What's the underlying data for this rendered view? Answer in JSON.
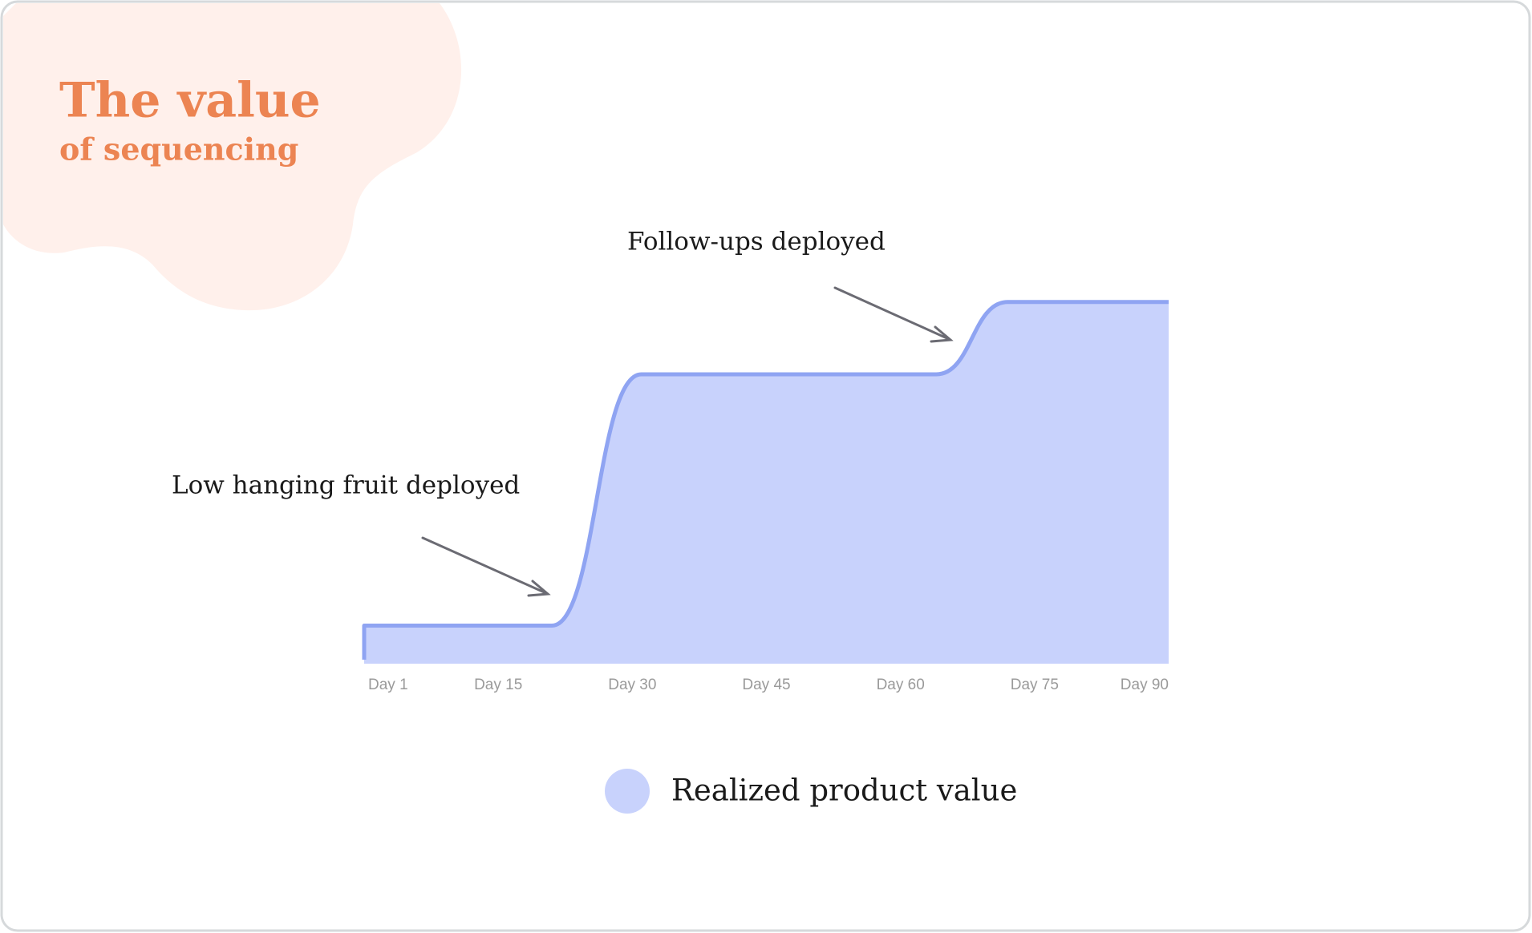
{
  "chart_data": {
    "type": "area",
    "title": "The value",
    "subtitle": "of sequencing",
    "annotations": [
      "Follow-ups deployed",
      "Low hanging fruit deployed"
    ],
    "x": [
      0,
      21,
      31,
      64,
      72,
      90
    ],
    "series": [
      {
        "name": "Realized product value",
        "color": "#c8d2fc",
        "line_color": "#8fa4f2",
        "values": [
          10,
          10,
          76,
          76,
          95,
          95
        ]
      }
    ],
    "xlim": [
      0,
      90
    ],
    "ylim": [
      0,
      100
    ],
    "xticks": [
      {
        "value": 1,
        "label": "Day 1"
      },
      {
        "value": 15,
        "label": "Day 15"
      },
      {
        "value": 30,
        "label": "Day 30"
      },
      {
        "value": 45,
        "label": "Day 45"
      },
      {
        "value": 60,
        "label": "Day 60"
      },
      {
        "value": 75,
        "label": "Day 75"
      },
      {
        "value": 90,
        "label": "Day 90"
      }
    ]
  }
}
